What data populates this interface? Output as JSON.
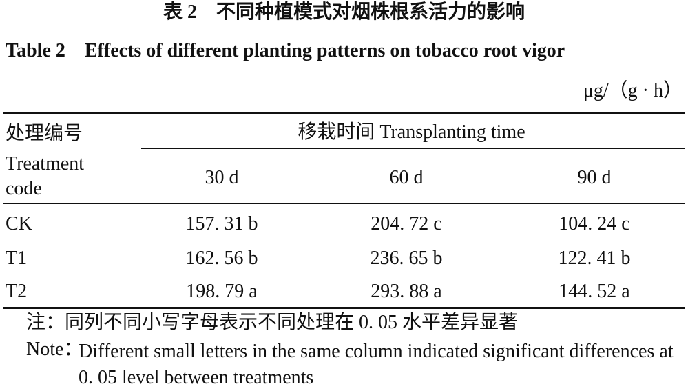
{
  "header": {
    "title_cn": "表 2　不同种植模式对烟株根系活力的影响",
    "title_en": "Table 2　Effects of different planting patterns on tobacco root vigor"
  },
  "table": {
    "unit": "μg/（g · h）",
    "row_header_cn": "处理编号",
    "row_header_en": "Treatment code",
    "group_header": "移栽时间 Transplanting time",
    "columns": [
      "30 d",
      "60 d",
      "90 d"
    ],
    "rows": [
      [
        "CK",
        "157. 31 b",
        "204. 72 c",
        "104. 24 c"
      ],
      [
        "T1",
        "162. 56 b",
        "236. 65 b",
        "122. 41 b"
      ],
      [
        "T2",
        "198. 79 a",
        "293. 88 a",
        "144. 52 a"
      ]
    ]
  },
  "notes": {
    "cn": "注：同列不同小写字母表示不同处理在 0. 05 水平差异显著",
    "en_label": "Note：",
    "en": "Different small letters in the same column indicated significant differences at 0. 05 level between treatments"
  }
}
